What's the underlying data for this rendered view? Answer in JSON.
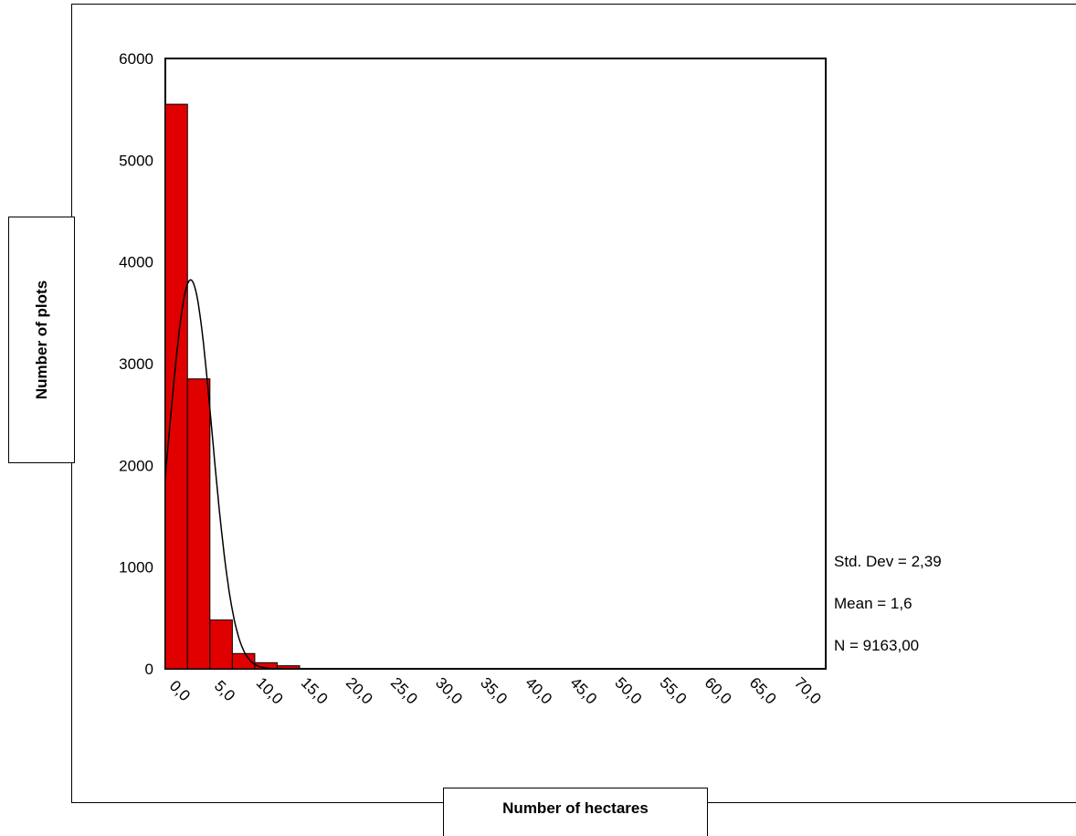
{
  "chart_data": {
    "type": "bar",
    "subtype": "histogram",
    "xlabel": "Number of hectares",
    "ylabel": "Number of plots",
    "ylim": [
      0,
      6000
    ],
    "yticks": [
      "6000",
      "5000",
      "4000",
      "3000",
      "2000",
      "1000",
      "0"
    ],
    "ytick_values": [
      6000,
      5000,
      4000,
      3000,
      2000,
      1000,
      0
    ],
    "xlim": [
      0,
      72.5
    ],
    "xticks": [
      "0,0",
      "5,0",
      "10,0",
      "15,0",
      "20,0",
      "25,0",
      "30,0",
      "35,0",
      "40,0",
      "45,0",
      "50,0",
      "55,0",
      "60,0",
      "65,0",
      "70,0"
    ],
    "xtick_values": [
      0,
      5,
      10,
      15,
      20,
      25,
      30,
      35,
      40,
      45,
      50,
      55,
      60,
      65,
      70
    ],
    "bin_width": 2.5,
    "bins": [
      {
        "x0": -1.25,
        "x1": 1.25,
        "value": 5550
      },
      {
        "x0": 1.25,
        "x1": 3.75,
        "value": 2850
      },
      {
        "x0": 3.75,
        "x1": 6.25,
        "value": 480
      },
      {
        "x0": 6.25,
        "x1": 8.75,
        "value": 150
      },
      {
        "x0": 8.75,
        "x1": 11.25,
        "value": 60
      },
      {
        "x0": 11.25,
        "x1": 13.75,
        "value": 30
      }
    ],
    "normal_curve": {
      "mean": 1.6,
      "std": 2.39,
      "n": 9163,
      "bin_width": 2.5
    },
    "bar_color": "#e00000",
    "grid": false
  },
  "stats": {
    "std": "Std. Dev = 2,39",
    "mean": "Mean = 1,6",
    "n": "N = 9163,00"
  }
}
